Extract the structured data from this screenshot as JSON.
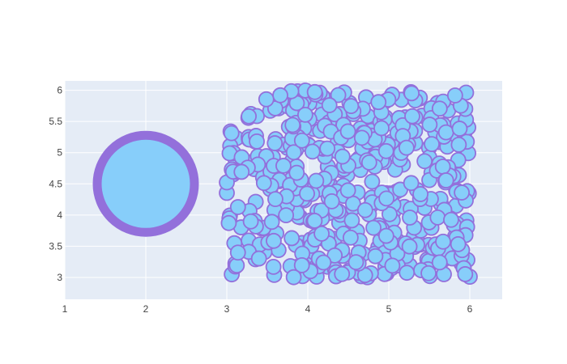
{
  "chart_data": {
    "type": "scatter",
    "title": "",
    "xlabel": "",
    "ylabel": "",
    "xlim": [
      1,
      6.4
    ],
    "ylim": [
      2.65,
      6.15
    ],
    "grid": true,
    "legend": "none",
    "x_ticks": [
      "1",
      "2",
      "3",
      "4",
      "5",
      "6"
    ],
    "y_ticks": [
      "3",
      "3.5",
      "4",
      "4.5",
      "5",
      "5.5",
      "6"
    ],
    "colors": {
      "plot_bg": "#e5ecf6",
      "grid": "#ffffff",
      "marker_fill": "#87cefa",
      "marker_line": "#9370db"
    },
    "series": [
      {
        "marker_size": "large",
        "points": [
          [
            2,
            4.5
          ]
        ]
      },
      {
        "marker_size": "small",
        "points_generated": {
          "count": 500,
          "x_range": [
            3,
            6
          ],
          "y_range": [
            3,
            6
          ],
          "distribution": "uniform random"
        }
      }
    ]
  }
}
